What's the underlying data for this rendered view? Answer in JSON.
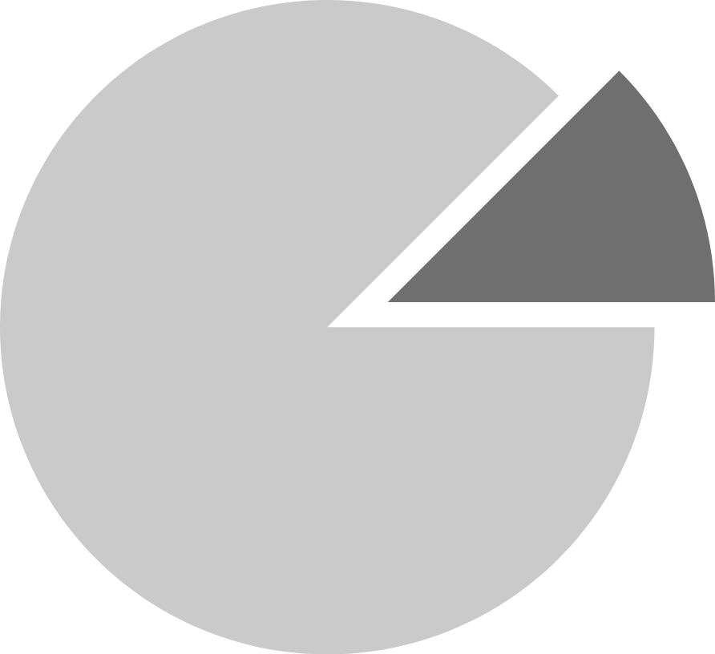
{
  "chart_data": {
    "type": "pie",
    "categories": [
      null,
      null
    ],
    "values": [
      12.5,
      87.5
    ],
    "colors": [
      "#6f6f6f",
      "#cacaca"
    ]
  }
}
